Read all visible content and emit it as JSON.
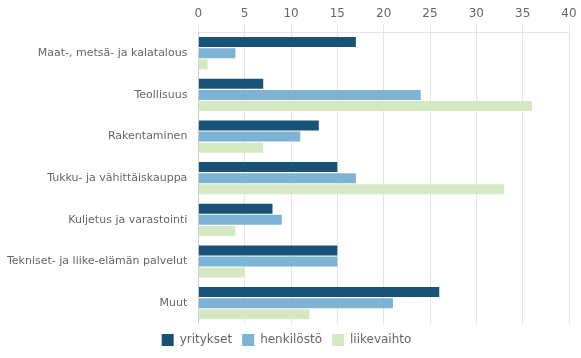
{
  "chart_data": {
    "type": "bar",
    "orientation": "horizontal",
    "categories": [
      "Maat-, metsä- ja kalatalous",
      "Teollisuus",
      "Rakentaminen",
      "Tukku- ja vähittäiskauppa",
      "Kuljetus ja varastointi",
      "Tekniset- ja liike-elämän palvelut",
      "Muut"
    ],
    "series": [
      {
        "name": "yritykset",
        "color": "#1a5276",
        "values": [
          17,
          7,
          13,
          15,
          8,
          15,
          26
        ]
      },
      {
        "name": "henkilöstö",
        "color": "#7fb3d3",
        "values": [
          4,
          24,
          11,
          17,
          9,
          15,
          21
        ]
      },
      {
        "name": "liikevaihto",
        "color": "#d5e8c4",
        "values": [
          1,
          36,
          7,
          33,
          4,
          5,
          12
        ]
      }
    ],
    "xlim": [
      0,
      40
    ],
    "xticks": [
      0,
      5,
      10,
      15,
      20,
      25,
      30,
      35,
      40
    ],
    "grid": true,
    "legend": "bottom"
  }
}
